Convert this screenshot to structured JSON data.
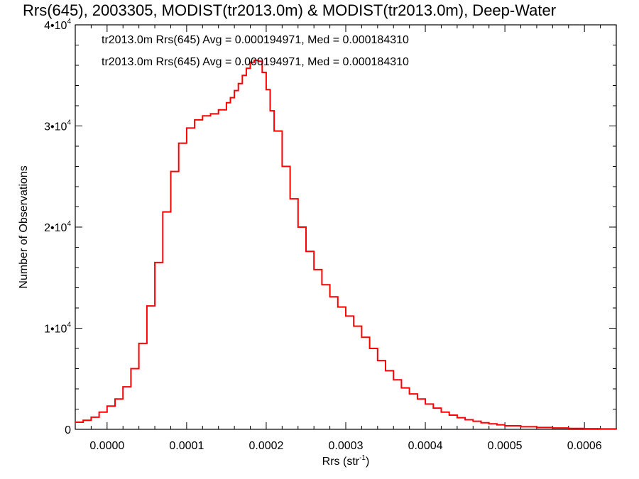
{
  "chart_data": {
    "type": "line",
    "style": "step-histogram",
    "title": "Rrs(645), 2003305, MODIST(tr2013.0m) & MODIST(tr2013.0m), Deep-Water",
    "xlabel": "Rrs (str",
    "xlabel_sup": "-1",
    "xlabel_close": ")",
    "ylabel": "Number of Observations",
    "xlim": [
      -4e-05,
      0.00064
    ],
    "ylim": [
      0,
      40000
    ],
    "grid": false,
    "x_ticks": [
      {
        "value": 0.0,
        "label": "0.0000"
      },
      {
        "value": 0.0001,
        "label": "0.0001"
      },
      {
        "value": 0.0002,
        "label": "0.0002"
      },
      {
        "value": 0.0003,
        "label": "0.0003"
      },
      {
        "value": 0.0004,
        "label": "0.0004"
      },
      {
        "value": 0.0005,
        "label": "0.0005"
      },
      {
        "value": 0.0006,
        "label": "0.0006"
      }
    ],
    "y_ticks": [
      {
        "value": 0,
        "mant": "0",
        "exp": ""
      },
      {
        "value": 10000,
        "mant": "1•10",
        "exp": "4"
      },
      {
        "value": 20000,
        "mant": "2•10",
        "exp": "4"
      },
      {
        "value": 30000,
        "mant": "3•10",
        "exp": "4"
      },
      {
        "value": 40000,
        "mant": "4•10",
        "exp": "4"
      }
    ],
    "annotations": [
      {
        "text": "tr2013.0m Rrs(645) Avg = 0.000194971, Med = 0.000184310",
        "color": "#000000"
      },
      {
        "text": "tr2013.0m Rrs(645) Avg = 0.000194971, Med = 0.000184310",
        "color": "#ff0000"
      }
    ],
    "series": [
      {
        "color": "#ff0000",
        "x": [
          -4e-05,
          -3e-05,
          -2e-05,
          -1e-05,
          0.0,
          1e-05,
          2e-05,
          3e-05,
          4e-05,
          5e-05,
          6e-05,
          7e-05,
          8e-05,
          9e-05,
          0.0001,
          0.00011,
          0.00012,
          0.00013,
          0.00014,
          0.00015,
          0.000155,
          0.00016,
          0.000165,
          0.00017,
          0.000175,
          0.00018,
          0.000185,
          0.00019,
          0.000195,
          0.0002,
          0.000205,
          0.00021,
          0.00022,
          0.00023,
          0.00024,
          0.00025,
          0.00026,
          0.00027,
          0.00028,
          0.00029,
          0.0003,
          0.00031,
          0.00032,
          0.00033,
          0.00034,
          0.00035,
          0.00036,
          0.00037,
          0.00038,
          0.00039,
          0.0004,
          0.00041,
          0.00042,
          0.00043,
          0.00044,
          0.00045,
          0.00046,
          0.00047,
          0.00048,
          0.00049,
          0.0005,
          0.00052,
          0.00054,
          0.00056,
          0.00058,
          0.0006,
          0.00062,
          0.00064
        ],
        "y": [
          700,
          900,
          1200,
          1700,
          2300,
          3000,
          4200,
          6000,
          8500,
          12200,
          16500,
          21500,
          25500,
          28300,
          29800,
          30600,
          31000,
          31200,
          31600,
          32300,
          32800,
          33500,
          34200,
          35000,
          35700,
          36300,
          36500,
          36400,
          35300,
          33600,
          31500,
          29500,
          26000,
          22800,
          20000,
          17600,
          15800,
          14300,
          13100,
          12100,
          11200,
          10200,
          9100,
          8000,
          6800,
          5800,
          4900,
          4100,
          3500,
          3000,
          2500,
          2100,
          1700,
          1400,
          1150,
          950,
          800,
          650,
          550,
          450,
          350,
          250,
          180,
          130,
          90,
          60,
          40,
          20
        ]
      }
    ]
  }
}
